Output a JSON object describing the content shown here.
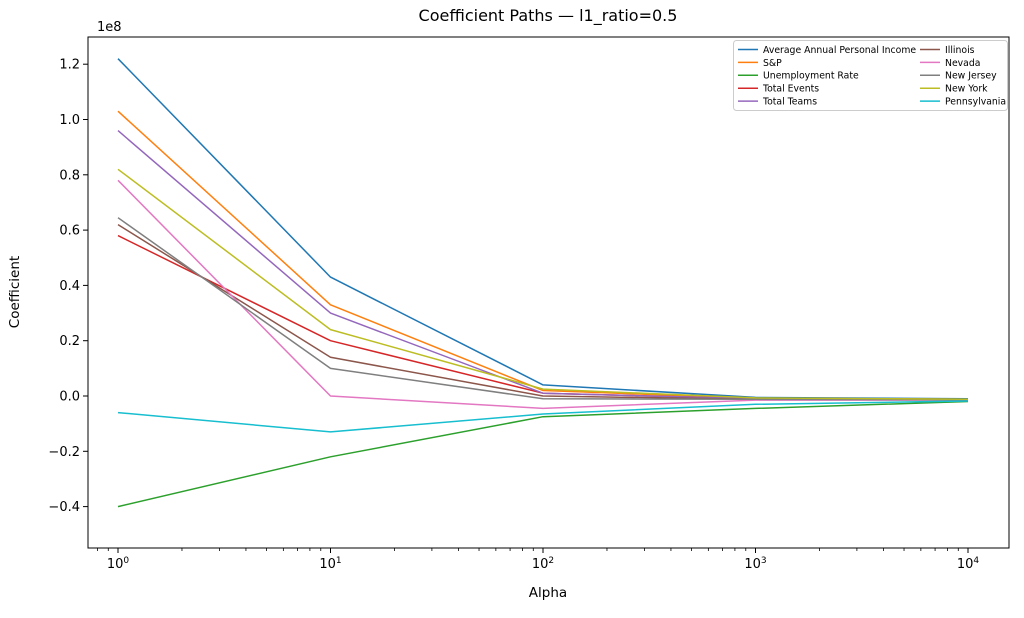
{
  "chart_data": {
    "type": "line",
    "title": "Coefficient Paths — l1_ratio=0.5",
    "xlabel": "Alpha",
    "ylabel": "Coefficient",
    "y_offset_label": "1e8",
    "x_scale": "log",
    "x": [
      1,
      10,
      100,
      1000,
      10000
    ],
    "x_tick_exponents": [
      0,
      1,
      2,
      3,
      4
    ],
    "x_tick_base": "10",
    "y_ticks": [
      -0.4,
      -0.2,
      0.0,
      0.2,
      0.4,
      0.6,
      0.8,
      1.0,
      1.2
    ],
    "y_values_unit": "1e8",
    "xlim_log10": [
      -0.141,
      4.193
    ],
    "ylim_1e8": [
      -0.55,
      1.3
    ],
    "grid": false,
    "legend": {
      "position": "upper right",
      "columns": 2
    },
    "series": [
      {
        "name": "Average Annual Personal Income",
        "color": "#1f77b4",
        "values": [
          1.22,
          0.43,
          0.04,
          -0.005,
          -0.01
        ]
      },
      {
        "name": "S&P",
        "color": "#ff7f0e",
        "values": [
          1.03,
          0.33,
          0.02,
          -0.008,
          -0.012
        ]
      },
      {
        "name": "Unemployment Rate",
        "color": "#2ca02c",
        "values": [
          -0.4,
          -0.22,
          -0.075,
          -0.045,
          -0.02
        ]
      },
      {
        "name": "Total Events",
        "color": "#d62728",
        "values": [
          0.58,
          0.2,
          0.01,
          -0.01,
          -0.013
        ]
      },
      {
        "name": "Total Teams",
        "color": "#9467bd",
        "values": [
          0.96,
          0.3,
          0.01,
          -0.01,
          -0.013
        ]
      },
      {
        "name": "Illinois",
        "color": "#8c564b",
        "values": [
          0.62,
          0.14,
          0.0,
          -0.012,
          -0.014
        ]
      },
      {
        "name": "Nevada",
        "color": "#e377c2",
        "values": [
          0.78,
          0.0,
          -0.045,
          -0.015,
          -0.015
        ]
      },
      {
        "name": "New Jersey",
        "color": "#7f7f7f",
        "values": [
          0.645,
          0.1,
          -0.01,
          -0.012,
          -0.014
        ]
      },
      {
        "name": "New York",
        "color": "#bcbd22",
        "values": [
          0.82,
          0.24,
          0.025,
          -0.007,
          -0.012
        ]
      },
      {
        "name": "Pennsylvania",
        "color": "#17becf",
        "values": [
          -0.06,
          -0.13,
          -0.065,
          -0.03,
          -0.018
        ]
      }
    ],
    "colors": {
      "background": "#ffffff",
      "spine": "#000000",
      "text": "#000000",
      "legend_border": "#cccccc"
    }
  }
}
